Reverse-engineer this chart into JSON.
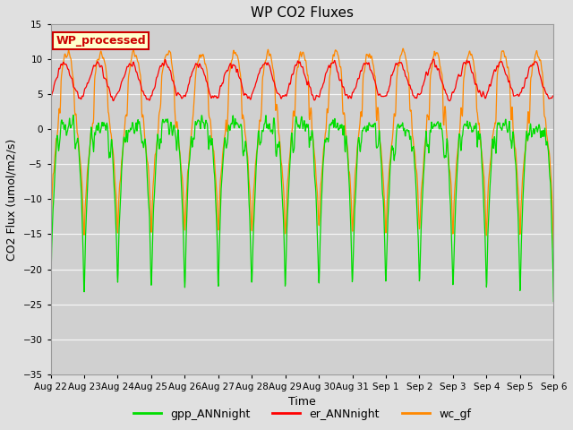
{
  "title": "WP CO2 Fluxes",
  "xlabel": "Time",
  "ylabel": "CO2 Flux (umol/m2/s)",
  "ylim": [
    -35,
    15
  ],
  "yticks": [
    -35,
    -30,
    -25,
    -20,
    -15,
    -10,
    -5,
    0,
    5,
    10,
    15
  ],
  "xtick_labels": [
    "Aug 22",
    "Aug 23",
    "Aug 24",
    "Aug 25",
    "Aug 26",
    "Aug 27",
    "Aug 28",
    "Aug 29",
    "Aug 30",
    "Aug 31",
    "Sep 1",
    "Sep 2",
    "Sep 3",
    "Sep 4",
    "Sep 5",
    "Sep 6"
  ],
  "color_gpp": "#00dd00",
  "color_er": "#ff0000",
  "color_wc": "#ff8800",
  "legend_label_gpp": "gpp_ANNnight",
  "legend_label_er": "er_ANNnight",
  "legend_label_wc": "wc_gf",
  "legend_box_label": "WP_processed",
  "legend_box_color": "#ffffcc",
  "legend_box_edge": "#cc0000",
  "legend_box_text_color": "#cc0000",
  "bg_color": "#e0e0e0",
  "plot_bg_color": "#d0d0d0",
  "n_points_per_day": 96,
  "n_days": 15
}
